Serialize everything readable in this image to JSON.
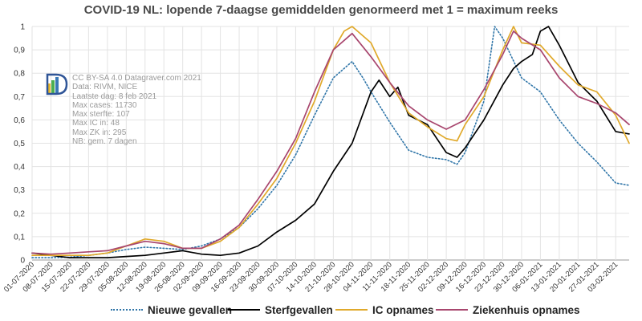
{
  "title": "COVID-19 NL: lopende 7-daagse gemiddelden genormeerd met 1 = maximum reeks",
  "info_lines": [
    "CC BY-SA 4.0 Datagraver.com 2021",
    "Data: RIVM, NICE",
    "Laatste dag: 8 feb 2021",
    "Max cases: 11730",
    "Max sterfte: 107",
    "Max IC in: 48",
    "Max ZK in: 295",
    "NB: gem. 7 dagen"
  ],
  "legend": [
    "Nieuwe gevallen",
    "Sterfgevallen",
    "IC opnames",
    "Ziekenhuis opnames"
  ],
  "colors": {
    "cases": "#2f75a8",
    "deaths": "#000000",
    "ic": "#e0a92b",
    "zk": "#a8466e",
    "grid": "#e3e3e3",
    "axis_text": "#333333",
    "title": "#4a4a4a"
  },
  "chart_data": {
    "type": "line",
    "title": "COVID-19 NL: lopende 7-daagse gemiddelden genormeerd met 1 = maximum reeks",
    "xlabel": "",
    "ylabel": "",
    "ylim": [
      0,
      1
    ],
    "yticks": [
      "0",
      "0,1",
      "0,2",
      "0,3",
      "0,4",
      "0,5",
      "0,6",
      "0,7",
      "0,8",
      "0,9",
      "1"
    ],
    "x_ticks": [
      "01-07-2020",
      "08-07-2020",
      "15-07-2020",
      "22-07-2020",
      "29-07-2020",
      "05-08-2020",
      "12-08-2020",
      "19-08-2020",
      "26-08-2020",
      "02-09-2020",
      "09-09-2020",
      "16-09-2020",
      "23-09-2020",
      "30-09-2020",
      "07-10-2020",
      "14-10-2020",
      "21-10-2020",
      "28-10-2020",
      "04-11-2020",
      "11-11-2020",
      "18-11-2020",
      "25-11-2020",
      "02-12-2020",
      "09-12-2020",
      "16-12-2020",
      "23-12-2020",
      "30-12-2020",
      "06-01-2021",
      "13-01-2021",
      "20-01-2021",
      "27-01-2021",
      "03-02-2021"
    ],
    "x_range": [
      "01-07-2020",
      "08-02-2021"
    ],
    "grid": true,
    "legend_position": "bottom",
    "series": [
      {
        "name": "Nieuwe gevallen",
        "style": "dotted",
        "points": [
          [
            "01-07-2020",
            0.01
          ],
          [
            "08-07-2020",
            0.01
          ],
          [
            "15-07-2020",
            0.012
          ],
          [
            "22-07-2020",
            0.02
          ],
          [
            "29-07-2020",
            0.03
          ],
          [
            "05-08-2020",
            0.045
          ],
          [
            "12-08-2020",
            0.055
          ],
          [
            "19-08-2020",
            0.05
          ],
          [
            "26-08-2020",
            0.045
          ],
          [
            "02-09-2020",
            0.06
          ],
          [
            "09-09-2020",
            0.09
          ],
          [
            "16-09-2020",
            0.14
          ],
          [
            "23-09-2020",
            0.22
          ],
          [
            "30-09-2020",
            0.32
          ],
          [
            "07-10-2020",
            0.45
          ],
          [
            "14-10-2020",
            0.62
          ],
          [
            "21-10-2020",
            0.78
          ],
          [
            "28-10-2020",
            0.85
          ],
          [
            "01-11-2020",
            0.78
          ],
          [
            "04-11-2020",
            0.72
          ],
          [
            "11-11-2020",
            0.59
          ],
          [
            "18-11-2020",
            0.47
          ],
          [
            "25-11-2020",
            0.44
          ],
          [
            "02-12-2020",
            0.43
          ],
          [
            "06-12-2020",
            0.41
          ],
          [
            "09-12-2020",
            0.46
          ],
          [
            "16-12-2020",
            0.68
          ],
          [
            "20-12-2020",
            1.0
          ],
          [
            "23-12-2020",
            0.95
          ],
          [
            "30-12-2020",
            0.78
          ],
          [
            "06-01-2021",
            0.72
          ],
          [
            "13-01-2021",
            0.6
          ],
          [
            "20-01-2021",
            0.5
          ],
          [
            "27-01-2021",
            0.42
          ],
          [
            "03-02-2021",
            0.33
          ],
          [
            "08-02-2021",
            0.32
          ]
        ]
      },
      {
        "name": "Sterfgevallen",
        "style": "solid",
        "points": [
          [
            "01-07-2020",
            0.03
          ],
          [
            "08-07-2020",
            0.02
          ],
          [
            "15-07-2020",
            0.01
          ],
          [
            "22-07-2020",
            0.01
          ],
          [
            "29-07-2020",
            0.01
          ],
          [
            "05-08-2020",
            0.015
          ],
          [
            "12-08-2020",
            0.02
          ],
          [
            "19-08-2020",
            0.03
          ],
          [
            "26-08-2020",
            0.04
          ],
          [
            "02-09-2020",
            0.025
          ],
          [
            "09-09-2020",
            0.02
          ],
          [
            "16-09-2020",
            0.03
          ],
          [
            "23-09-2020",
            0.06
          ],
          [
            "30-09-2020",
            0.12
          ],
          [
            "07-10-2020",
            0.17
          ],
          [
            "14-10-2020",
            0.24
          ],
          [
            "21-10-2020",
            0.38
          ],
          [
            "28-10-2020",
            0.5
          ],
          [
            "04-11-2020",
            0.72
          ],
          [
            "07-11-2020",
            0.77
          ],
          [
            "11-11-2020",
            0.7
          ],
          [
            "14-11-2020",
            0.74
          ],
          [
            "18-11-2020",
            0.62
          ],
          [
            "25-11-2020",
            0.58
          ],
          [
            "02-12-2020",
            0.46
          ],
          [
            "06-12-2020",
            0.44
          ],
          [
            "09-12-2020",
            0.48
          ],
          [
            "16-12-2020",
            0.6
          ],
          [
            "23-12-2020",
            0.75
          ],
          [
            "27-12-2020",
            0.82
          ],
          [
            "30-12-2020",
            0.85
          ],
          [
            "03-01-2021",
            0.88
          ],
          [
            "06-01-2021",
            0.98
          ],
          [
            "09-01-2021",
            1.0
          ],
          [
            "13-01-2021",
            0.92
          ],
          [
            "20-01-2021",
            0.76
          ],
          [
            "27-01-2021",
            0.68
          ],
          [
            "03-02-2021",
            0.55
          ],
          [
            "08-02-2021",
            0.54
          ]
        ]
      },
      {
        "name": "IC opnames",
        "style": "solid",
        "points": [
          [
            "01-07-2020",
            0.02
          ],
          [
            "08-07-2020",
            0.02
          ],
          [
            "15-07-2020",
            0.02
          ],
          [
            "22-07-2020",
            0.02
          ],
          [
            "29-07-2020",
            0.03
          ],
          [
            "05-08-2020",
            0.06
          ],
          [
            "12-08-2020",
            0.09
          ],
          [
            "19-08-2020",
            0.08
          ],
          [
            "26-08-2020",
            0.05
          ],
          [
            "02-09-2020",
            0.05
          ],
          [
            "09-09-2020",
            0.08
          ],
          [
            "16-09-2020",
            0.14
          ],
          [
            "23-09-2020",
            0.24
          ],
          [
            "30-09-2020",
            0.35
          ],
          [
            "07-10-2020",
            0.5
          ],
          [
            "14-10-2020",
            0.68
          ],
          [
            "21-10-2020",
            0.9
          ],
          [
            "25-10-2020",
            0.98
          ],
          [
            "28-10-2020",
            1.0
          ],
          [
            "04-11-2020",
            0.93
          ],
          [
            "11-11-2020",
            0.76
          ],
          [
            "18-11-2020",
            0.63
          ],
          [
            "25-11-2020",
            0.57
          ],
          [
            "02-12-2020",
            0.52
          ],
          [
            "06-12-2020",
            0.51
          ],
          [
            "09-12-2020",
            0.58
          ],
          [
            "16-12-2020",
            0.7
          ],
          [
            "23-12-2020",
            0.9
          ],
          [
            "27-12-2020",
            1.0
          ],
          [
            "30-12-2020",
            0.93
          ],
          [
            "06-01-2021",
            0.92
          ],
          [
            "13-01-2021",
            0.83
          ],
          [
            "20-01-2021",
            0.75
          ],
          [
            "27-01-2021",
            0.72
          ],
          [
            "03-02-2021",
            0.62
          ],
          [
            "08-02-2021",
            0.5
          ]
        ]
      },
      {
        "name": "Ziekenhuis opnames",
        "style": "solid",
        "points": [
          [
            "01-07-2020",
            0.03
          ],
          [
            "08-07-2020",
            0.025
          ],
          [
            "15-07-2020",
            0.03
          ],
          [
            "22-07-2020",
            0.035
          ],
          [
            "29-07-2020",
            0.04
          ],
          [
            "05-08-2020",
            0.06
          ],
          [
            "12-08-2020",
            0.08
          ],
          [
            "19-08-2020",
            0.07
          ],
          [
            "26-08-2020",
            0.05
          ],
          [
            "02-09-2020",
            0.05
          ],
          [
            "09-09-2020",
            0.09
          ],
          [
            "16-09-2020",
            0.15
          ],
          [
            "23-09-2020",
            0.26
          ],
          [
            "30-09-2020",
            0.38
          ],
          [
            "07-10-2020",
            0.52
          ],
          [
            "14-10-2020",
            0.72
          ],
          [
            "21-10-2020",
            0.9
          ],
          [
            "28-10-2020",
            0.97
          ],
          [
            "04-11-2020",
            0.87
          ],
          [
            "11-11-2020",
            0.76
          ],
          [
            "18-11-2020",
            0.66
          ],
          [
            "25-11-2020",
            0.6
          ],
          [
            "02-12-2020",
            0.56
          ],
          [
            "09-12-2020",
            0.6
          ],
          [
            "16-12-2020",
            0.73
          ],
          [
            "23-12-2020",
            0.88
          ],
          [
            "27-12-2020",
            0.98
          ],
          [
            "30-12-2020",
            0.95
          ],
          [
            "06-01-2021",
            0.9
          ],
          [
            "13-01-2021",
            0.78
          ],
          [
            "20-01-2021",
            0.7
          ],
          [
            "27-01-2021",
            0.67
          ],
          [
            "03-02-2021",
            0.63
          ],
          [
            "08-02-2021",
            0.58
          ]
        ]
      }
    ]
  }
}
